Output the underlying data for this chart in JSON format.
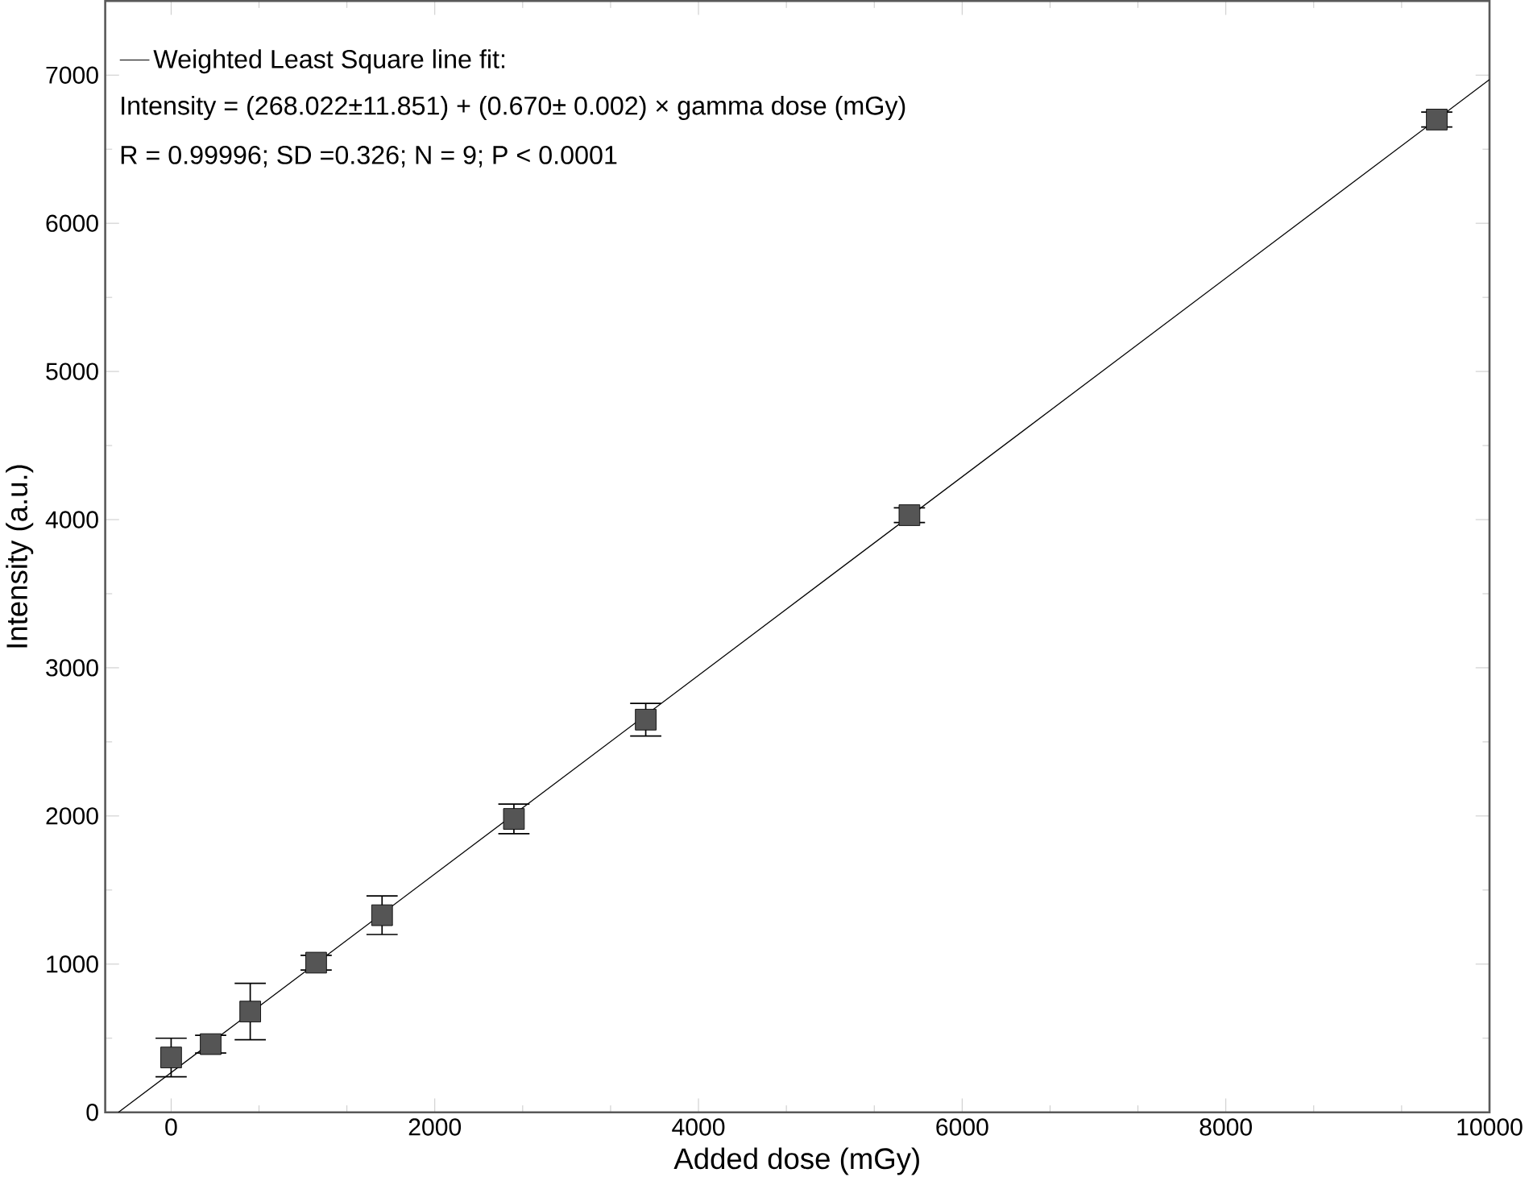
{
  "chart_data": {
    "type": "scatter",
    "xlabel": "Added dose (mGy)",
    "ylabel": "Intensity (a.u.)",
    "x": [
      0,
      300,
      600,
      1100,
      1600,
      2600,
      3600,
      5600,
      9600
    ],
    "series": [
      {
        "color": "#555555",
        "marker": "square",
        "values": [
          370,
          460,
          680,
          1010,
          1330,
          1980,
          2650,
          4030,
          6700
        ],
        "errors": [
          130,
          60,
          190,
          50,
          130,
          100,
          110,
          50,
          50
        ]
      },
      {
        "type": "line",
        "name": "Weighted Least Square line fit:",
        "color": "#000000",
        "line_style": "solid",
        "marker": "none",
        "x": [
          -400,
          10000
        ],
        "values": [
          0,
          6970
        ]
      }
    ],
    "annotations": [
      "Intensity = (268.022±11.851) + (0.670± 0.002) × gamma dose (mGy)",
      "R = 0.99996; SD =0.326; N = 9; P < 0.0001"
    ],
    "xlim": [
      -500,
      10000
    ],
    "ylim": [
      0,
      7500
    ],
    "xticks": [
      0,
      2000,
      4000,
      6000,
      8000,
      10000
    ],
    "yticks": [
      0,
      1000,
      2000,
      3000,
      4000,
      5000,
      6000,
      7000
    ],
    "grid": false,
    "legend": "top left"
  }
}
